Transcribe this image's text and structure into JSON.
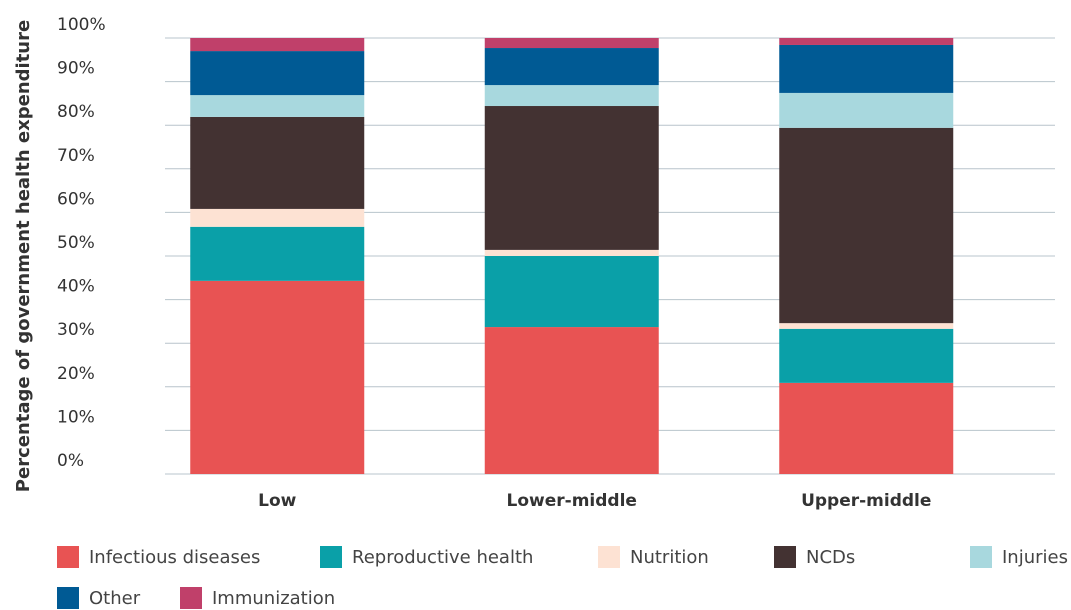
{
  "chart_data": {
    "type": "stacked_bar",
    "y_label": "Percentage of government health expenditure",
    "categories": [
      "Low",
      "Lower-middle",
      "Upper-middle"
    ],
    "series": [
      {
        "name": "Infectious diseases",
        "color": "#e85353",
        "values": [
          44.3,
          33.7,
          20.9
        ]
      },
      {
        "name": "Reproductive health",
        "color": "#0aa0a8",
        "values": [
          12.4,
          16.3,
          12.4
        ]
      },
      {
        "name": "Nutrition",
        "color": "#fde2d3",
        "values": [
          4.1,
          1.4,
          1.3
        ]
      },
      {
        "name": "NCDs",
        "color": "#433232",
        "values": [
          21.1,
          33.0,
          44.8
        ]
      },
      {
        "name": "Injuries",
        "color": "#a8d8de",
        "values": [
          5.0,
          4.8,
          8.0
        ]
      },
      {
        "name": "Other",
        "color": "#005a94",
        "values": [
          10.1,
          8.5,
          11.0
        ]
      },
      {
        "name": "Immunization",
        "color": "#c0406a",
        "values": [
          3.0,
          2.3,
          1.6
        ]
      }
    ],
    "ylim": [
      0,
      100
    ],
    "yticks": [
      {
        "value": 0,
        "label": "0%"
      },
      {
        "value": 10,
        "label": "10%"
      },
      {
        "value": 20,
        "label": "20%"
      },
      {
        "value": 30,
        "label": "30%"
      },
      {
        "value": 40,
        "label": "40%"
      },
      {
        "value": 50,
        "label": "50%"
      },
      {
        "value": 60,
        "label": "60%"
      },
      {
        "value": 70,
        "label": "70%"
      },
      {
        "value": 80,
        "label": "80%"
      },
      {
        "value": 90,
        "label": "90%"
      },
      {
        "value": 100,
        "label": "100%"
      }
    ],
    "grid": true
  }
}
